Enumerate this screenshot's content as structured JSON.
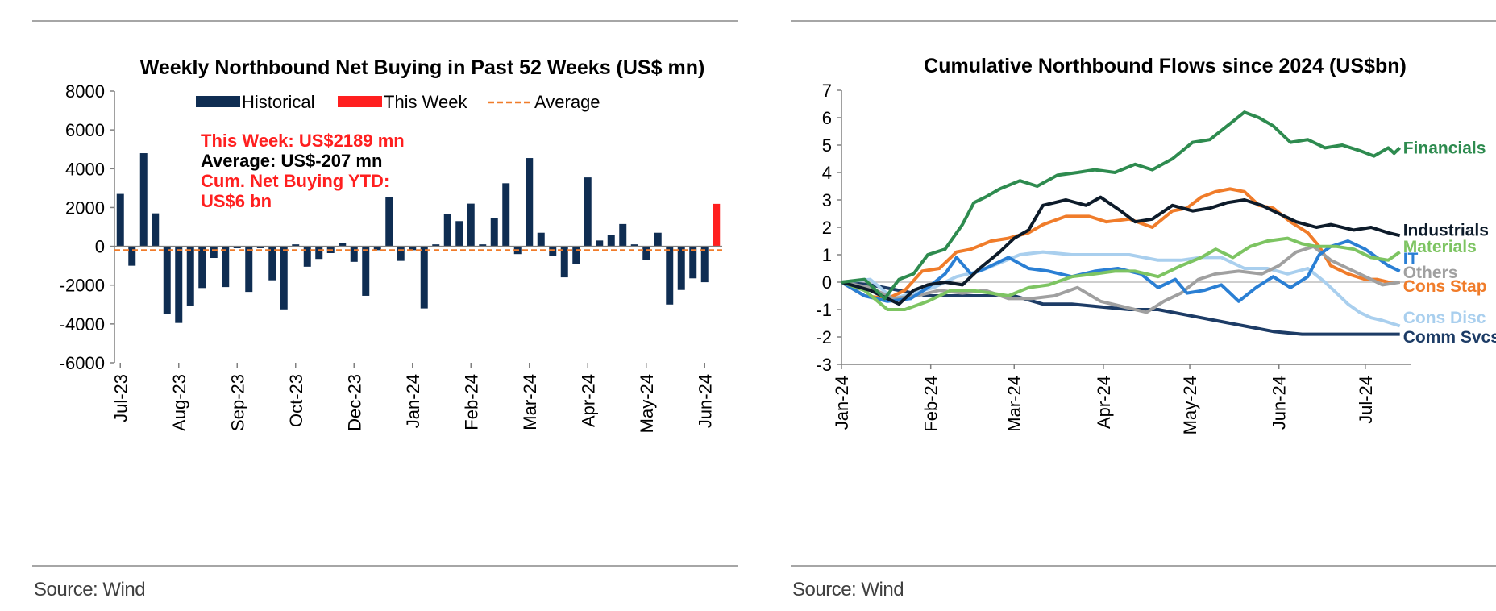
{
  "left": {
    "source": "Source: Wind",
    "chart_data": {
      "type": "bar",
      "title": "Weekly Northbound Net Buying in Past 52 Weeks (US$ mn)",
      "ylim": [
        -6000,
        8000
      ],
      "yticks": [
        "8000",
        "6000",
        "4000",
        "2000",
        "0",
        "-2000",
        "-4000",
        "-6000"
      ],
      "xtick_labels": [
        "Jul-23",
        "Aug-23",
        "Sep-23",
        "Oct-23",
        "Dec-23",
        "Jan-24",
        "Feb-24",
        "Mar-24",
        "Apr-24",
        "May-24",
        "Jun-24"
      ],
      "xtick_index": [
        0,
        5,
        10,
        15,
        20,
        25,
        30,
        35,
        40,
        45,
        50
      ],
      "legend": {
        "historical": "Historical",
        "this_week": "This Week",
        "average": "Average"
      },
      "colors": {
        "historical": "#0f2d52",
        "this_week": "#ff1f1f",
        "average": "#f07c2a"
      },
      "values": [
        2700,
        -1000,
        4800,
        1700,
        -3500,
        -3950,
        -3050,
        -2150,
        -600,
        -2100,
        -100,
        -2350,
        -100,
        -1750,
        -3250,
        100,
        -1050,
        -650,
        -350,
        150,
        -800,
        -2550,
        -200,
        2550,
        -750,
        -200,
        -3200,
        100,
        1650,
        1300,
        2200,
        100,
        1450,
        3250,
        -400,
        4550,
        700,
        -500,
        -1600,
        -900,
        3550,
        300,
        600,
        1150,
        100,
        -700,
        700,
        -3000,
        -2250,
        -1650,
        -1850,
        2189
      ],
      "average": -207,
      "annotations": [
        {
          "text": "This Week: US$2189 mn",
          "color": "#ff1f1f"
        },
        {
          "text": "Average: US$-207 mn",
          "color": "#000000"
        },
        {
          "text": "Cum. Net Buying YTD:",
          "color": "#ff1f1f"
        },
        {
          "text": "US$6 bn",
          "color": "#ff1f1f"
        }
      ]
    }
  },
  "right": {
    "source": "Source: Wind",
    "chart_data": {
      "type": "line",
      "title": "Cumulative Northbound Flows since 2024 (US$bn)",
      "ylim": [
        -3,
        7
      ],
      "yticks": [
        "7",
        "6",
        "5",
        "4",
        "3",
        "2",
        "1",
        "0",
        "-1",
        "-2",
        "-3"
      ],
      "xlim": [
        0,
        198
      ],
      "xtick_labels": [
        "Jan-24",
        "Feb-24",
        "Mar-24",
        "Apr-24",
        "May-24",
        "Jun-24",
        "Jul-24"
      ],
      "xtick_days": [
        0,
        31,
        60,
        91,
        121,
        152,
        182
      ],
      "series": [
        {
          "name": "Financials",
          "color": "#2e8b4f",
          "end_label_y": 4.9,
          "points": [
            [
              0,
              0
            ],
            [
              8,
              0.1
            ],
            [
              15,
              -0.6
            ],
            [
              20,
              0.1
            ],
            [
              25,
              0.3
            ],
            [
              30,
              1
            ],
            [
              36,
              1.2
            ],
            [
              42,
              2.1
            ],
            [
              46,
              2.9
            ],
            [
              50,
              3.1
            ],
            [
              55,
              3.4
            ],
            [
              62,
              3.7
            ],
            [
              68,
              3.5
            ],
            [
              75,
              3.9
            ],
            [
              82,
              4
            ],
            [
              88,
              4.1
            ],
            [
              95,
              4
            ],
            [
              102,
              4.3
            ],
            [
              108,
              4.1
            ],
            [
              115,
              4.5
            ],
            [
              122,
              5.1
            ],
            [
              128,
              5.2
            ],
            [
              134,
              5.7
            ],
            [
              140,
              6.2
            ],
            [
              145,
              6
            ],
            [
              150,
              5.7
            ],
            [
              156,
              5.1
            ],
            [
              162,
              5.2
            ],
            [
              168,
              4.9
            ],
            [
              174,
              5
            ],
            [
              180,
              4.8
            ],
            [
              185,
              4.6
            ],
            [
              190,
              4.9
            ],
            [
              192,
              4.7
            ],
            [
              194,
              4.9
            ]
          ]
        },
        {
          "name": "Industrials",
          "color": "#0d1b2a",
          "end_label_y": 1.9,
          "points": [
            [
              0,
              0
            ],
            [
              10,
              -0.3
            ],
            [
              20,
              -0.8
            ],
            [
              25,
              -0.3
            ],
            [
              30,
              -0.1
            ],
            [
              36,
              0
            ],
            [
              42,
              -0.1
            ],
            [
              48,
              0.5
            ],
            [
              55,
              1.1
            ],
            [
              60,
              1.6
            ],
            [
              65,
              1.9
            ],
            [
              70,
              2.8
            ],
            [
              78,
              3
            ],
            [
              85,
              2.8
            ],
            [
              90,
              3.1
            ],
            [
              97,
              2.6
            ],
            [
              102,
              2.2
            ],
            [
              108,
              2.3
            ],
            [
              115,
              2.8
            ],
            [
              122,
              2.6
            ],
            [
              128,
              2.7
            ],
            [
              134,
              2.9
            ],
            [
              140,
              3
            ],
            [
              146,
              2.8
            ],
            [
              152,
              2.5
            ],
            [
              158,
              2.2
            ],
            [
              165,
              2
            ],
            [
              170,
              2.1
            ],
            [
              178,
              1.9
            ],
            [
              184,
              2
            ],
            [
              190,
              1.8
            ],
            [
              194,
              1.7
            ]
          ]
        },
        {
          "name": "Materials",
          "color": "#7dc462",
          "end_label_y": 1.3,
          "points": [
            [
              0,
              0
            ],
            [
              8,
              -0.3
            ],
            [
              16,
              -1
            ],
            [
              22,
              -1
            ],
            [
              30,
              -0.7
            ],
            [
              38,
              -0.3
            ],
            [
              45,
              -0.3
            ],
            [
              52,
              -0.4
            ],
            [
              58,
              -0.5
            ],
            [
              65,
              -0.2
            ],
            [
              72,
              -0.1
            ],
            [
              80,
              0.2
            ],
            [
              88,
              0.3
            ],
            [
              95,
              0.4
            ],
            [
              102,
              0.4
            ],
            [
              110,
              0.2
            ],
            [
              118,
              0.6
            ],
            [
              125,
              0.9
            ],
            [
              130,
              1.2
            ],
            [
              136,
              0.9
            ],
            [
              142,
              1.3
            ],
            [
              148,
              1.5
            ],
            [
              155,
              1.6
            ],
            [
              160,
              1.4
            ],
            [
              165,
              1.3
            ],
            [
              172,
              1.3
            ],
            [
              178,
              1.2
            ],
            [
              184,
              0.9
            ],
            [
              190,
              0.8
            ],
            [
              194,
              1.1
            ]
          ]
        },
        {
          "name": "IT",
          "color": "#2a7fd4",
          "end_label_y": 0.85,
          "points": [
            [
              0,
              0
            ],
            [
              8,
              -0.5
            ],
            [
              16,
              -0.7
            ],
            [
              24,
              -0.6
            ],
            [
              30,
              -0.2
            ],
            [
              36,
              0.3
            ],
            [
              40,
              0.9
            ],
            [
              45,
              0.3
            ],
            [
              50,
              0.5
            ],
            [
              58,
              0.9
            ],
            [
              65,
              0.5
            ],
            [
              72,
              0.4
            ],
            [
              80,
              0.2
            ],
            [
              88,
              0.4
            ],
            [
              96,
              0.5
            ],
            [
              104,
              0.3
            ],
            [
              110,
              -0.2
            ],
            [
              116,
              0.1
            ],
            [
              120,
              -0.4
            ],
            [
              126,
              -0.3
            ],
            [
              132,
              -0.1
            ],
            [
              138,
              -0.7
            ],
            [
              144,
              -0.2
            ],
            [
              150,
              0.2
            ],
            [
              156,
              -0.2
            ],
            [
              162,
              0.2
            ],
            [
              166,
              1
            ],
            [
              170,
              1.3
            ],
            [
              176,
              1.5
            ],
            [
              182,
              1.2
            ],
            [
              186,
              0.9
            ],
            [
              190,
              0.6
            ],
            [
              194,
              0.4
            ]
          ]
        },
        {
          "name": "Others",
          "color": "#a0a0a0",
          "end_label_y": 0.35,
          "points": [
            [
              0,
              0
            ],
            [
              10,
              -0.2
            ],
            [
              18,
              -0.6
            ],
            [
              26,
              -0.5
            ],
            [
              34,
              -0.3
            ],
            [
              42,
              -0.4
            ],
            [
              50,
              -0.3
            ],
            [
              58,
              -0.6
            ],
            [
              66,
              -0.6
            ],
            [
              74,
              -0.5
            ],
            [
              82,
              -0.2
            ],
            [
              90,
              -0.7
            ],
            [
              98,
              -0.9
            ],
            [
              106,
              -1.1
            ],
            [
              112,
              -0.7
            ],
            [
              118,
              -0.4
            ],
            [
              124,
              0.1
            ],
            [
              130,
              0.3
            ],
            [
              138,
              0.4
            ],
            [
              146,
              0.3
            ],
            [
              152,
              0.6
            ],
            [
              158,
              1.1
            ],
            [
              164,
              1.3
            ],
            [
              170,
              0.8
            ],
            [
              176,
              0.5
            ],
            [
              182,
              0.2
            ],
            [
              188,
              -0.1
            ],
            [
              194,
              0
            ]
          ]
        },
        {
          "name": "Cons Stap",
          "color": "#f07c2a",
          "end_label_y": -0.15,
          "points": [
            [
              0,
              0
            ],
            [
              8,
              -0.5
            ],
            [
              16,
              -0.6
            ],
            [
              22,
              -0.3
            ],
            [
              28,
              0.4
            ],
            [
              34,
              0.5
            ],
            [
              40,
              1.1
            ],
            [
              45,
              1.2
            ],
            [
              52,
              1.5
            ],
            [
              58,
              1.6
            ],
            [
              65,
              1.8
            ],
            [
              70,
              2.1
            ],
            [
              78,
              2.4
            ],
            [
              86,
              2.4
            ],
            [
              92,
              2.2
            ],
            [
              100,
              2.3
            ],
            [
              108,
              2
            ],
            [
              115,
              2.6
            ],
            [
              120,
              2.7
            ],
            [
              125,
              3.1
            ],
            [
              130,
              3.3
            ],
            [
              135,
              3.4
            ],
            [
              140,
              3.3
            ],
            [
              145,
              2.8
            ],
            [
              150,
              2.7
            ],
            [
              156,
              2.2
            ],
            [
              162,
              1.8
            ],
            [
              166,
              1.3
            ],
            [
              170,
              0.6
            ],
            [
              176,
              0.3
            ],
            [
              182,
              0.1
            ],
            [
              186,
              0.1
            ],
            [
              190,
              0
            ],
            [
              194,
              0
            ]
          ]
        },
        {
          "name": "Cons Disc",
          "color": "#a9cfee",
          "end_label_y": -1.3,
          "points": [
            [
              0,
              0
            ],
            [
              10,
              0.1
            ],
            [
              18,
              -0.6
            ],
            [
              25,
              -0.4
            ],
            [
              32,
              -0.2
            ],
            [
              40,
              0.2
            ],
            [
              48,
              0.4
            ],
            [
              55,
              0.7
            ],
            [
              62,
              1
            ],
            [
              70,
              1.1
            ],
            [
              80,
              1
            ],
            [
              90,
              1
            ],
            [
              100,
              1
            ],
            [
              110,
              0.8
            ],
            [
              118,
              0.8
            ],
            [
              125,
              0.9
            ],
            [
              132,
              0.9
            ],
            [
              140,
              0.5
            ],
            [
              148,
              0.5
            ],
            [
              155,
              0.3
            ],
            [
              162,
              0.5
            ],
            [
              168,
              0
            ],
            [
              172,
              -0.4
            ],
            [
              176,
              -0.8
            ],
            [
              180,
              -1.1
            ],
            [
              184,
              -1.3
            ],
            [
              188,
              -1.4
            ],
            [
              194,
              -1.6
            ]
          ]
        },
        {
          "name": "Comm Svcs",
          "color": "#1d3c66",
          "end_label_y": -2,
          "points": [
            [
              0,
              0
            ],
            [
              10,
              -0.1
            ],
            [
              20,
              -0.3
            ],
            [
              30,
              -0.5
            ],
            [
              40,
              -0.5
            ],
            [
              50,
              -0.5
            ],
            [
              60,
              -0.5
            ],
            [
              70,
              -0.8
            ],
            [
              80,
              -0.8
            ],
            [
              90,
              -0.9
            ],
            [
              100,
              -1
            ],
            [
              110,
              -1
            ],
            [
              120,
              -1.2
            ],
            [
              130,
              -1.4
            ],
            [
              140,
              -1.6
            ],
            [
              150,
              -1.8
            ],
            [
              160,
              -1.9
            ],
            [
              170,
              -1.9
            ],
            [
              180,
              -1.9
            ],
            [
              190,
              -1.9
            ],
            [
              194,
              -1.9
            ]
          ]
        }
      ]
    }
  }
}
